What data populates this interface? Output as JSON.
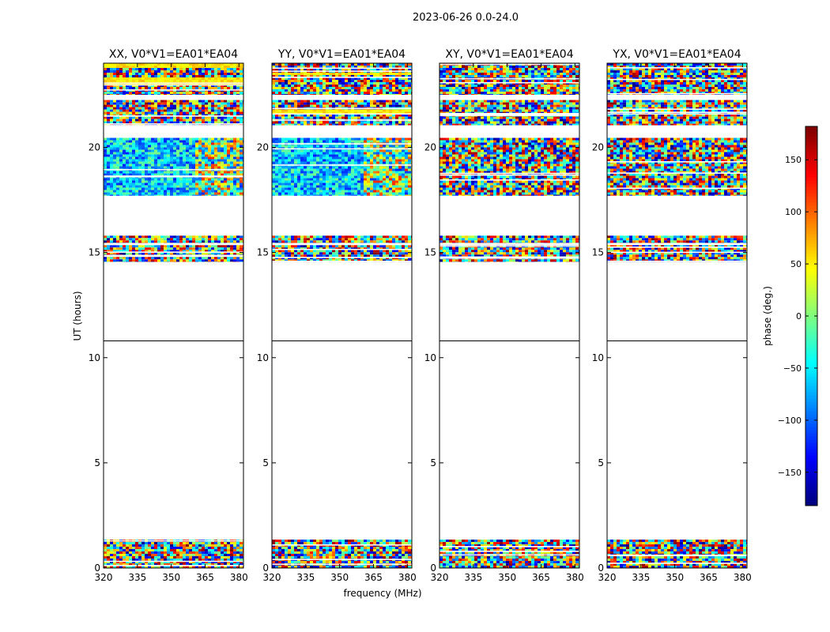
{
  "figure_title": "2023-06-26 0.0-24.0",
  "chart_data": {
    "type": "heatmap",
    "title": "2023-06-26 0.0-24.0",
    "xlabel": "frequency (MHz)",
    "ylabel": "UT (hours)",
    "xlim": [
      320,
      382
    ],
    "ylim": [
      0,
      24
    ],
    "xticks": [
      320,
      335,
      350,
      365,
      380
    ],
    "yticks": [
      0,
      5,
      10,
      15,
      20
    ],
    "data_rows_ut": [
      [
        0.0,
        1.35
      ],
      [
        14.55,
        15.35
      ],
      [
        15.45,
        15.8
      ],
      [
        17.7,
        20.45
      ],
      [
        21.05,
        22.25
      ],
      [
        22.5,
        24.0
      ]
    ],
    "separator_ut": 10.8,
    "panels": [
      {
        "name": "XX",
        "title": "XX, V0*V1=EA01*EA04"
      },
      {
        "name": "YY",
        "title": "YY, V0*V1=EA01*EA04"
      },
      {
        "name": "XY",
        "title": "XY, V0*V1=EA01*EA04"
      },
      {
        "name": "YX",
        "title": "YX, V0*V1=EA01*EA04"
      }
    ],
    "colorbar": {
      "label": "phase (deg.)",
      "range": [
        -182,
        182
      ],
      "ticks": [
        -150,
        -100,
        -50,
        0,
        50,
        100,
        150
      ],
      "tick_labels": [
        "−150",
        "−100",
        "−50",
        "0",
        "50",
        "100",
        "150"
      ],
      "colormap": [
        "#00007f",
        "#0000ff",
        "#007fff",
        "#00ffff",
        "#7fff7f",
        "#ffff00",
        "#ff7f00",
        "#ff0000",
        "#7f0000"
      ]
    }
  }
}
